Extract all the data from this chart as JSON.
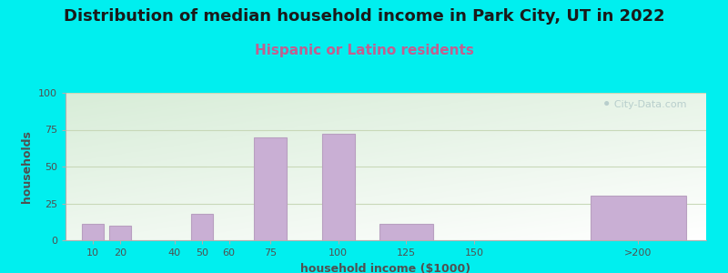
{
  "title": "Distribution of median household income in Park City, UT in 2022",
  "subtitle": "Hispanic or Latino residents",
  "xlabel": "household income ($1000)",
  "ylabel": "households",
  "bar_labels": [
    "10",
    "20",
    "40",
    "50",
    "60",
    "75",
    "100",
    "125",
    "150",
    ">200"
  ],
  "bar_values": [
    11,
    10,
    0,
    18,
    0,
    70,
    72,
    11,
    0,
    30
  ],
  "bar_color": "#c9afd4",
  "bar_edge_color": "#b89fc0",
  "ylim": [
    0,
    100
  ],
  "yticks": [
    0,
    25,
    50,
    75,
    100
  ],
  "bg_outer": "#00efef",
  "title_fontsize": 13,
  "title_color": "#1a1a1a",
  "subtitle_color": "#c06090",
  "subtitle_fontsize": 11,
  "axis_label_color": "#505050",
  "tick_color": "#505050",
  "watermark_text": "City-Data.com",
  "watermark_color": "#b0c8c8",
  "grid_color": "#c8d8b8",
  "x_positions": [
    10,
    20,
    40,
    50,
    60,
    75,
    100,
    125,
    150,
    210
  ],
  "bar_widths": [
    8,
    8,
    0,
    8,
    0,
    12,
    12,
    20,
    0,
    35
  ],
  "xlim": [
    0,
    235
  ]
}
